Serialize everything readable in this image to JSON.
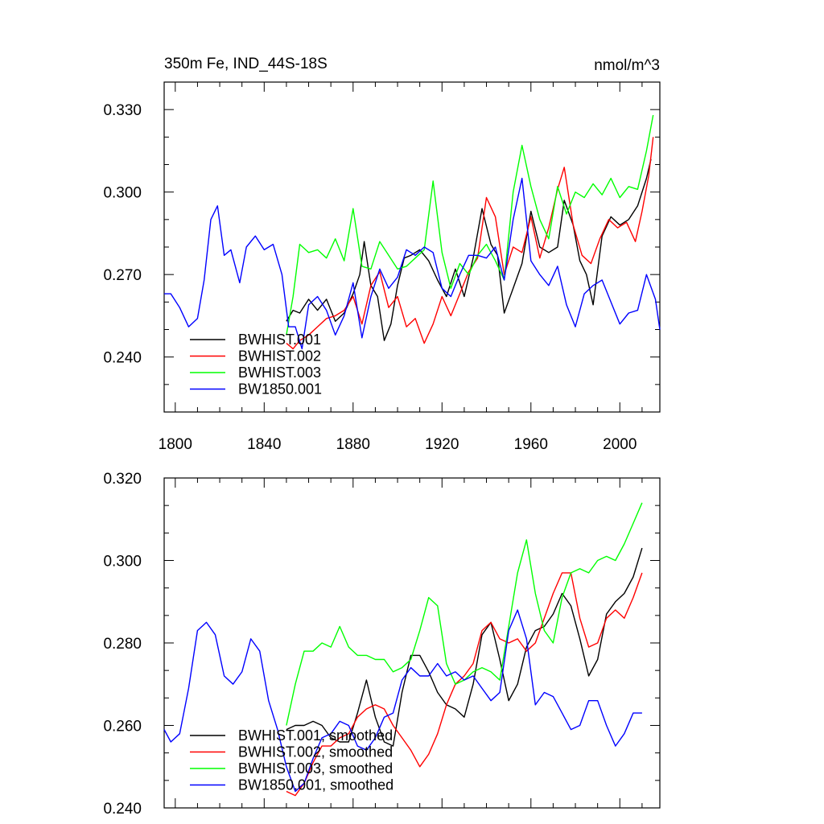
{
  "chart_data": [
    {
      "type": "line",
      "title": "350m Fe, IND_44S-18S",
      "units": "nmol/m^3",
      "xlim": [
        1795,
        2018
      ],
      "ylim": [
        0.22,
        0.34
      ],
      "xticks": [
        1800,
        1840,
        1880,
        1920,
        1960,
        2000
      ],
      "xtick_labels": [
        "1800",
        "1840",
        "1880",
        "1920",
        "1960",
        "2000"
      ],
      "yticks": [
        0.24,
        0.27,
        0.3,
        0.33
      ],
      "ytick_labels": [
        "0.240",
        "0.270",
        "0.300",
        "0.330"
      ],
      "grid": false,
      "legend": "bottom-left",
      "series": [
        {
          "name": "BWHIST.001",
          "color": "#000000",
          "x": [
            1850,
            1853,
            1856,
            1860,
            1864,
            1868,
            1872,
            1876,
            1880,
            1883,
            1885,
            1888,
            1891,
            1894,
            1897,
            1900,
            1903,
            1906,
            1910,
            1914,
            1918,
            1922,
            1926,
            1930,
            1934,
            1938,
            1942,
            1945,
            1948,
            1952,
            1956,
            1960,
            1964,
            1968,
            1972,
            1975,
            1979,
            1982,
            1985,
            1988,
            1992,
            1996,
            2000,
            2004,
            2008,
            2012,
            2014
          ],
          "y": [
            0.253,
            0.257,
            0.256,
            0.261,
            0.257,
            0.261,
            0.253,
            0.256,
            0.263,
            0.27,
            0.282,
            0.266,
            0.262,
            0.246,
            0.252,
            0.266,
            0.276,
            0.277,
            0.279,
            0.275,
            0.268,
            0.262,
            0.272,
            0.262,
            0.276,
            0.294,
            0.281,
            0.277,
            0.256,
            0.265,
            0.274,
            0.293,
            0.28,
            0.278,
            0.28,
            0.297,
            0.288,
            0.275,
            0.27,
            0.259,
            0.284,
            0.291,
            0.288,
            0.29,
            0.295,
            0.305,
            0.312
          ]
        },
        {
          "name": "BWHIST.002",
          "color": "#ff0000",
          "x": [
            1850,
            1853,
            1856,
            1860,
            1864,
            1868,
            1872,
            1876,
            1880,
            1884,
            1888,
            1892,
            1896,
            1900,
            1904,
            1908,
            1912,
            1916,
            1920,
            1924,
            1928,
            1932,
            1936,
            1940,
            1944,
            1948,
            1952,
            1956,
            1960,
            1964,
            1968,
            1972,
            1975,
            1979,
            1983,
            1987,
            1991,
            1995,
            1999,
            2003,
            2007,
            2010,
            2013,
            2015
          ],
          "y": [
            0.245,
            0.243,
            0.246,
            0.248,
            0.251,
            0.254,
            0.255,
            0.257,
            0.262,
            0.252,
            0.266,
            0.271,
            0.258,
            0.262,
            0.251,
            0.254,
            0.245,
            0.252,
            0.262,
            0.255,
            0.263,
            0.271,
            0.276,
            0.298,
            0.291,
            0.27,
            0.28,
            0.278,
            0.291,
            0.276,
            0.287,
            0.301,
            0.309,
            0.288,
            0.277,
            0.274,
            0.283,
            0.29,
            0.287,
            0.289,
            0.282,
            0.293,
            0.306,
            0.32
          ]
        },
        {
          "name": "BWHIST.003",
          "color": "#00ff00",
          "x": [
            1850,
            1853,
            1856,
            1860,
            1864,
            1868,
            1872,
            1876,
            1880,
            1884,
            1888,
            1892,
            1896,
            1900,
            1904,
            1908,
            1912,
            1916,
            1920,
            1924,
            1928,
            1932,
            1936,
            1940,
            1944,
            1948,
            1952,
            1956,
            1960,
            1964,
            1968,
            1972,
            1976,
            1980,
            1984,
            1988,
            1992,
            1996,
            2000,
            2004,
            2008,
            2012,
            2015
          ],
          "y": [
            0.248,
            0.262,
            0.281,
            0.278,
            0.279,
            0.276,
            0.283,
            0.275,
            0.294,
            0.273,
            0.272,
            0.282,
            0.277,
            0.272,
            0.273,
            0.276,
            0.279,
            0.304,
            0.278,
            0.265,
            0.274,
            0.27,
            0.277,
            0.281,
            0.275,
            0.268,
            0.3,
            0.317,
            0.302,
            0.29,
            0.283,
            0.302,
            0.292,
            0.3,
            0.298,
            0.303,
            0.299,
            0.305,
            0.298,
            0.302,
            0.301,
            0.315,
            0.328
          ]
        },
        {
          "name": "BW1850.001",
          "color": "#0000ff",
          "x": [
            1795,
            1798,
            1802,
            1806,
            1810,
            1813,
            1816,
            1819,
            1822,
            1825,
            1829,
            1832,
            1836,
            1840,
            1844,
            1848,
            1851,
            1854,
            1857,
            1860,
            1864,
            1868,
            1872,
            1876,
            1880,
            1884,
            1888,
            1892,
            1896,
            1900,
            1904,
            1908,
            1912,
            1916,
            1920,
            1924,
            1928,
            1932,
            1936,
            1940,
            1944,
            1948,
            1952,
            1956,
            1960,
            1964,
            1968,
            1972,
            1976,
            1980,
            1984,
            1988,
            1992,
            1996,
            2000,
            2004,
            2008,
            2012,
            2016,
            2018
          ],
          "y": [
            0.263,
            0.263,
            0.258,
            0.251,
            0.254,
            0.268,
            0.29,
            0.295,
            0.277,
            0.279,
            0.267,
            0.28,
            0.284,
            0.279,
            0.281,
            0.27,
            0.251,
            0.251,
            0.243,
            0.259,
            0.262,
            0.257,
            0.248,
            0.255,
            0.267,
            0.247,
            0.262,
            0.272,
            0.265,
            0.269,
            0.279,
            0.277,
            0.28,
            0.278,
            0.265,
            0.262,
            0.27,
            0.277,
            0.277,
            0.276,
            0.28,
            0.268,
            0.29,
            0.305,
            0.275,
            0.27,
            0.266,
            0.273,
            0.259,
            0.251,
            0.263,
            0.266,
            0.268,
            0.26,
            0.252,
            0.256,
            0.257,
            0.27,
            0.261,
            0.25
          ]
        }
      ]
    },
    {
      "type": "line",
      "xlim": [
        1795,
        2018
      ],
      "ylim": [
        0.24,
        0.32
      ],
      "xticks": [
        1800,
        1840,
        1880,
        1920,
        1960,
        2000
      ],
      "yticks": [
        0.24,
        0.26,
        0.28,
        0.3,
        0.32
      ],
      "ytick_labels": [
        "0.240",
        "0.260",
        "0.280",
        "0.300",
        "0.320"
      ],
      "grid": false,
      "legend": "bottom-left",
      "series": [
        {
          "name": "BWHIST.001, smoothed",
          "color": "#000000",
          "x": [
            1850,
            1854,
            1858,
            1862,
            1866,
            1870,
            1874,
            1878,
            1882,
            1886,
            1890,
            1894,
            1898,
            1902,
            1906,
            1910,
            1914,
            1918,
            1922,
            1926,
            1930,
            1934,
            1938,
            1942,
            1946,
            1950,
            1954,
            1958,
            1962,
            1966,
            1970,
            1974,
            1978,
            1982,
            1986,
            1990,
            1994,
            1998,
            2002,
            2006,
            2010
          ],
          "y": [
            0.259,
            0.26,
            0.26,
            0.261,
            0.26,
            0.257,
            0.256,
            0.256,
            0.263,
            0.271,
            0.262,
            0.256,
            0.255,
            0.268,
            0.277,
            0.277,
            0.273,
            0.268,
            0.265,
            0.264,
            0.262,
            0.27,
            0.282,
            0.285,
            0.276,
            0.266,
            0.27,
            0.279,
            0.283,
            0.284,
            0.287,
            0.292,
            0.289,
            0.281,
            0.272,
            0.276,
            0.287,
            0.29,
            0.292,
            0.296,
            0.303
          ]
        },
        {
          "name": "BWHIST.002, smoothed",
          "color": "#ff0000",
          "x": [
            1850,
            1854,
            1858,
            1862,
            1866,
            1870,
            1874,
            1878,
            1882,
            1886,
            1890,
            1894,
            1898,
            1902,
            1906,
            1910,
            1914,
            1918,
            1922,
            1926,
            1930,
            1934,
            1938,
            1942,
            1946,
            1950,
            1954,
            1958,
            1962,
            1966,
            1970,
            1974,
            1978,
            1982,
            1986,
            1990,
            1994,
            1998,
            2002,
            2006,
            2010
          ],
          "y": [
            0.244,
            0.243,
            0.246,
            0.251,
            0.255,
            0.255,
            0.257,
            0.258,
            0.262,
            0.264,
            0.265,
            0.264,
            0.26,
            0.257,
            0.254,
            0.25,
            0.253,
            0.258,
            0.265,
            0.27,
            0.272,
            0.275,
            0.283,
            0.285,
            0.281,
            0.28,
            0.281,
            0.278,
            0.28,
            0.286,
            0.292,
            0.297,
            0.297,
            0.286,
            0.279,
            0.28,
            0.286,
            0.288,
            0.286,
            0.291,
            0.297
          ]
        },
        {
          "name": "BWHIST.003, smoothed",
          "color": "#00ff00",
          "x": [
            1850,
            1854,
            1858,
            1862,
            1866,
            1870,
            1874,
            1878,
            1882,
            1886,
            1890,
            1894,
            1898,
            1902,
            1906,
            1910,
            1914,
            1918,
            1922,
            1926,
            1930,
            1934,
            1938,
            1942,
            1946,
            1950,
            1954,
            1958,
            1962,
            1966,
            1970,
            1974,
            1978,
            1982,
            1986,
            1990,
            1994,
            1998,
            2002,
            2006,
            2010
          ],
          "y": [
            0.26,
            0.27,
            0.278,
            0.278,
            0.28,
            0.279,
            0.284,
            0.279,
            0.277,
            0.277,
            0.276,
            0.276,
            0.273,
            0.274,
            0.276,
            0.283,
            0.291,
            0.289,
            0.275,
            0.27,
            0.271,
            0.273,
            0.274,
            0.273,
            0.271,
            0.284,
            0.297,
            0.305,
            0.292,
            0.283,
            0.28,
            0.291,
            0.297,
            0.298,
            0.297,
            0.3,
            0.301,
            0.3,
            0.304,
            0.309,
            0.314
          ]
        },
        {
          "name": "BW1850.001, smoothed",
          "color": "#0000ff",
          "x": [
            1795,
            1798,
            1802,
            1806,
            1810,
            1814,
            1818,
            1822,
            1826,
            1830,
            1834,
            1838,
            1842,
            1846,
            1850,
            1854,
            1858,
            1862,
            1866,
            1870,
            1874,
            1878,
            1882,
            1886,
            1890,
            1894,
            1898,
            1902,
            1906,
            1910,
            1914,
            1918,
            1922,
            1926,
            1930,
            1934,
            1938,
            1942,
            1946,
            1950,
            1954,
            1958,
            1962,
            1966,
            1970,
            1974,
            1978,
            1982,
            1986,
            1990,
            1994,
            1998,
            2002,
            2006,
            2010
          ],
          "y": [
            0.259,
            0.256,
            0.258,
            0.269,
            0.283,
            0.285,
            0.282,
            0.272,
            0.27,
            0.273,
            0.281,
            0.278,
            0.266,
            0.259,
            0.25,
            0.244,
            0.246,
            0.252,
            0.257,
            0.258,
            0.261,
            0.26,
            0.255,
            0.254,
            0.257,
            0.262,
            0.263,
            0.271,
            0.274,
            0.272,
            0.272,
            0.275,
            0.272,
            0.273,
            0.271,
            0.272,
            0.269,
            0.266,
            0.268,
            0.283,
            0.288,
            0.281,
            0.265,
            0.268,
            0.267,
            0.263,
            0.259,
            0.26,
            0.266,
            0.266,
            0.26,
            0.255,
            0.258,
            0.263,
            0.263
          ]
        }
      ]
    }
  ]
}
